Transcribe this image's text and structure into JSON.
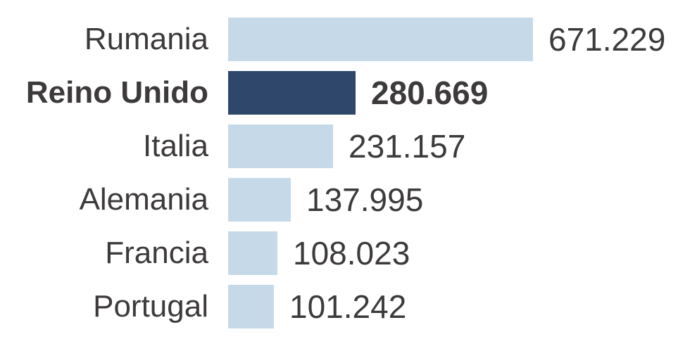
{
  "chart_data": {
    "type": "bar",
    "orientation": "horizontal",
    "categories": [
      "Rumania",
      "Reino Unido",
      "Italia",
      "Alemania",
      "Francia",
      "Portugal"
    ],
    "values": [
      671229,
      280669,
      231157,
      137995,
      108023,
      101242
    ],
    "value_labels": [
      "671.229",
      "280.669",
      "231.157",
      "137.995",
      "108.023",
      "101.242"
    ],
    "highlighted_index": 1,
    "title": "",
    "xlabel": "",
    "ylabel": "",
    "grid": false,
    "legend": "none"
  },
  "colors": {
    "bar": "#c6d9e8",
    "highlight_bar": "#2e476b",
    "text": "#3d3a3c"
  }
}
